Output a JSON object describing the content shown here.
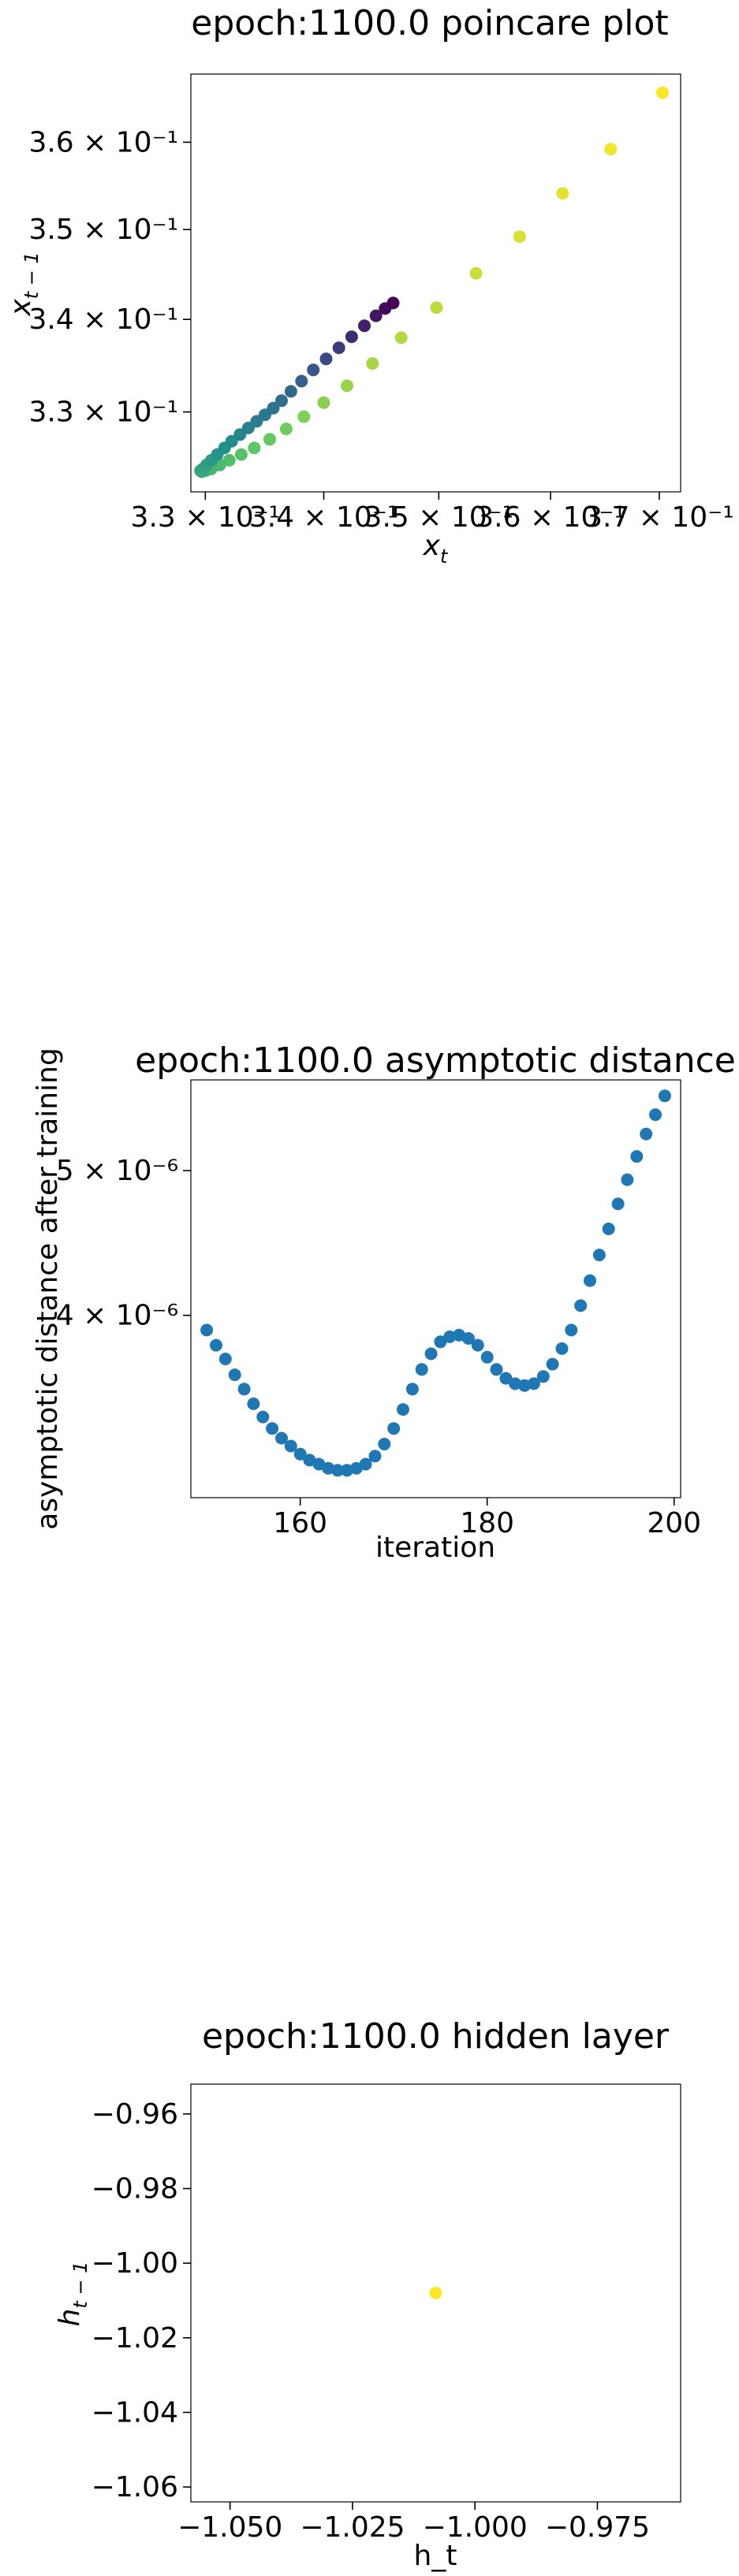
{
  "chart_data": [
    {
      "type": "scatter",
      "title": "epoch:1100.0 poincare plot",
      "xlabel": "x",
      "xlabel_sub": "t",
      "ylabel": "x",
      "ylabel_sub": "t − 1",
      "xscale": "log",
      "yscale": "log",
      "xlim": [
        0.3288,
        0.372
      ],
      "ylim": [
        0.3216,
        0.368
      ],
      "colormap": "viridis",
      "grid": false,
      "xticks": [
        {
          "value": 0.33,
          "label": "3.3 × 10⁻¹"
        },
        {
          "value": 0.34,
          "label": "3.4 × 10⁻¹"
        },
        {
          "value": 0.35,
          "label": "3.5 × 10⁻¹"
        },
        {
          "value": 0.36,
          "label": "3.6 × 10⁻¹"
        },
        {
          "value": 0.37,
          "label": "3.7 × 10⁻¹"
        }
      ],
      "yticks": [
        {
          "value": 0.33,
          "label": "3.3 × 10⁻¹"
        },
        {
          "value": 0.34,
          "label": "3.4 × 10⁻¹"
        },
        {
          "value": 0.35,
          "label": "3.5 × 10⁻¹"
        },
        {
          "value": 0.36,
          "label": "3.6 × 10⁻¹"
        }
      ],
      "points": [
        {
          "x": 0.3703,
          "y": 0.3658,
          "c": 1.0
        },
        {
          "x": 0.3655,
          "y": 0.3592,
          "c": 0.98
        },
        {
          "x": 0.3611,
          "y": 0.3541,
          "c": 0.96
        },
        {
          "x": 0.3572,
          "y": 0.3492,
          "c": 0.94
        },
        {
          "x": 0.3533,
          "y": 0.3451,
          "c": 0.92
        },
        {
          "x": 0.3498,
          "y": 0.3413,
          "c": 0.9
        },
        {
          "x": 0.3467,
          "y": 0.338,
          "c": 0.88
        },
        {
          "x": 0.3442,
          "y": 0.3352,
          "c": 0.86
        },
        {
          "x": 0.342,
          "y": 0.3328,
          "c": 0.84
        },
        {
          "x": 0.34,
          "y": 0.331,
          "c": 0.82
        },
        {
          "x": 0.3383,
          "y": 0.3295,
          "c": 0.8
        },
        {
          "x": 0.3368,
          "y": 0.3282,
          "c": 0.78
        },
        {
          "x": 0.3354,
          "y": 0.3271,
          "c": 0.76
        },
        {
          "x": 0.3341,
          "y": 0.3262,
          "c": 0.74
        },
        {
          "x": 0.333,
          "y": 0.3255,
          "c": 0.72
        },
        {
          "x": 0.332,
          "y": 0.3249,
          "c": 0.7
        },
        {
          "x": 0.3312,
          "y": 0.3244,
          "c": 0.68
        },
        {
          "x": 0.3305,
          "y": 0.324,
          "c": 0.66
        },
        {
          "x": 0.33,
          "y": 0.3238,
          "c": 0.64
        },
        {
          "x": 0.3297,
          "y": 0.3237,
          "c": 0.62
        },
        {
          "x": 0.3296,
          "y": 0.3238,
          "c": 0.6
        },
        {
          "x": 0.3298,
          "y": 0.324,
          "c": 0.58
        },
        {
          "x": 0.3301,
          "y": 0.3244,
          "c": 0.56
        },
        {
          "x": 0.3305,
          "y": 0.3249,
          "c": 0.54
        },
        {
          "x": 0.331,
          "y": 0.3255,
          "c": 0.52
        },
        {
          "x": 0.3316,
          "y": 0.3262,
          "c": 0.5
        },
        {
          "x": 0.3322,
          "y": 0.3269,
          "c": 0.48
        },
        {
          "x": 0.3329,
          "y": 0.3276,
          "c": 0.46
        },
        {
          "x": 0.3336,
          "y": 0.3283,
          "c": 0.44
        },
        {
          "x": 0.3343,
          "y": 0.329,
          "c": 0.42
        },
        {
          "x": 0.335,
          "y": 0.3297,
          "c": 0.4
        },
        {
          "x": 0.3357,
          "y": 0.3304,
          "c": 0.38
        },
        {
          "x": 0.3364,
          "y": 0.3312,
          "c": 0.36
        },
        {
          "x": 0.3372,
          "y": 0.3322,
          "c": 0.34
        },
        {
          "x": 0.3381,
          "y": 0.3333,
          "c": 0.3
        },
        {
          "x": 0.3391,
          "y": 0.3345,
          "c": 0.26
        },
        {
          "x": 0.3402,
          "y": 0.3357,
          "c": 0.22
        },
        {
          "x": 0.3413,
          "y": 0.3369,
          "c": 0.18
        },
        {
          "x": 0.3424,
          "y": 0.3381,
          "c": 0.14
        },
        {
          "x": 0.3435,
          "y": 0.3393,
          "c": 0.1
        },
        {
          "x": 0.3445,
          "y": 0.3404,
          "c": 0.06
        },
        {
          "x": 0.3453,
          "y": 0.3412,
          "c": 0.03
        },
        {
          "x": 0.346,
          "y": 0.3418,
          "c": 0.0
        }
      ]
    },
    {
      "type": "scatter",
      "title": "epoch:1100.0 asymptotic distance",
      "xlabel": "iteration",
      "ylabel": "asymptotic distance after training",
      "yscale": "log",
      "xlim": [
        148.3,
        200.7
      ],
      "ylim": [
        3.02e-06,
        5.75e-06
      ],
      "color": "#1f77b4",
      "grid": false,
      "xticks": [
        {
          "value": 160,
          "label": "160"
        },
        {
          "value": 180,
          "label": "180"
        },
        {
          "value": 200,
          "label": "200"
        }
      ],
      "yticks": [
        {
          "value": 4e-06,
          "label": "4 × 10⁻⁶"
        },
        {
          "value": 5e-06,
          "label": "5 × 10⁻⁶"
        }
      ],
      "x": [
        150,
        151,
        152,
        153,
        154,
        155,
        156,
        157,
        158,
        159,
        160,
        161,
        162,
        163,
        164,
        165,
        166,
        167,
        168,
        169,
        170,
        171,
        172,
        173,
        174,
        175,
        176,
        177,
        178,
        179,
        180,
        181,
        182,
        183,
        184,
        185,
        186,
        187,
        188,
        189,
        190,
        191,
        192,
        193,
        194,
        195,
        196,
        197,
        198,
        199
      ],
      "y": [
        3.91e-06,
        3.82e-06,
        3.74e-06,
        3.65e-06,
        3.57e-06,
        3.49e-06,
        3.42e-06,
        3.36e-06,
        3.31e-06,
        3.27e-06,
        3.23e-06,
        3.2e-06,
        3.18e-06,
        3.16e-06,
        3.15e-06,
        3.15e-06,
        3.16e-06,
        3.18e-06,
        3.22e-06,
        3.28e-06,
        3.36e-06,
        3.46e-06,
        3.57e-06,
        3.68e-06,
        3.77e-06,
        3.84e-06,
        3.87e-06,
        3.88e-06,
        3.86e-06,
        3.82e-06,
        3.75e-06,
        3.68e-06,
        3.63e-06,
        3.6e-06,
        3.59e-06,
        3.6e-06,
        3.64e-06,
        3.71e-06,
        3.8e-06,
        3.91e-06,
        4.06e-06,
        4.22e-06,
        4.39e-06,
        4.57e-06,
        4.75e-06,
        4.93e-06,
        5.11e-06,
        5.29e-06,
        5.45e-06,
        5.61e-06
      ]
    },
    {
      "type": "scatter",
      "title": "epoch:1100.0 hidden layer",
      "xlabel": "h_t",
      "ylabel": "h",
      "ylabel_sub": "t − 1",
      "xlim": [
        -1.058,
        -0.958
      ],
      "ylim": [
        -1.064,
        -0.952
      ],
      "color": "#fde725",
      "grid": false,
      "xticks": [
        {
          "value": -1.05,
          "label": "−1.050"
        },
        {
          "value": -1.025,
          "label": "−1.025"
        },
        {
          "value": -1.0,
          "label": "−1.000"
        },
        {
          "value": -0.975,
          "label": "−0.975"
        }
      ],
      "yticks": [
        {
          "value": -0.96,
          "label": "−0.96"
        },
        {
          "value": -0.98,
          "label": "−0.98"
        },
        {
          "value": -1.0,
          "label": "−1.00"
        },
        {
          "value": -1.02,
          "label": "−1.02"
        },
        {
          "value": -1.04,
          "label": "−1.04"
        },
        {
          "value": -1.06,
          "label": "−1.06"
        }
      ],
      "points": [
        {
          "x": -1.008,
          "y": -1.008
        }
      ]
    }
  ]
}
